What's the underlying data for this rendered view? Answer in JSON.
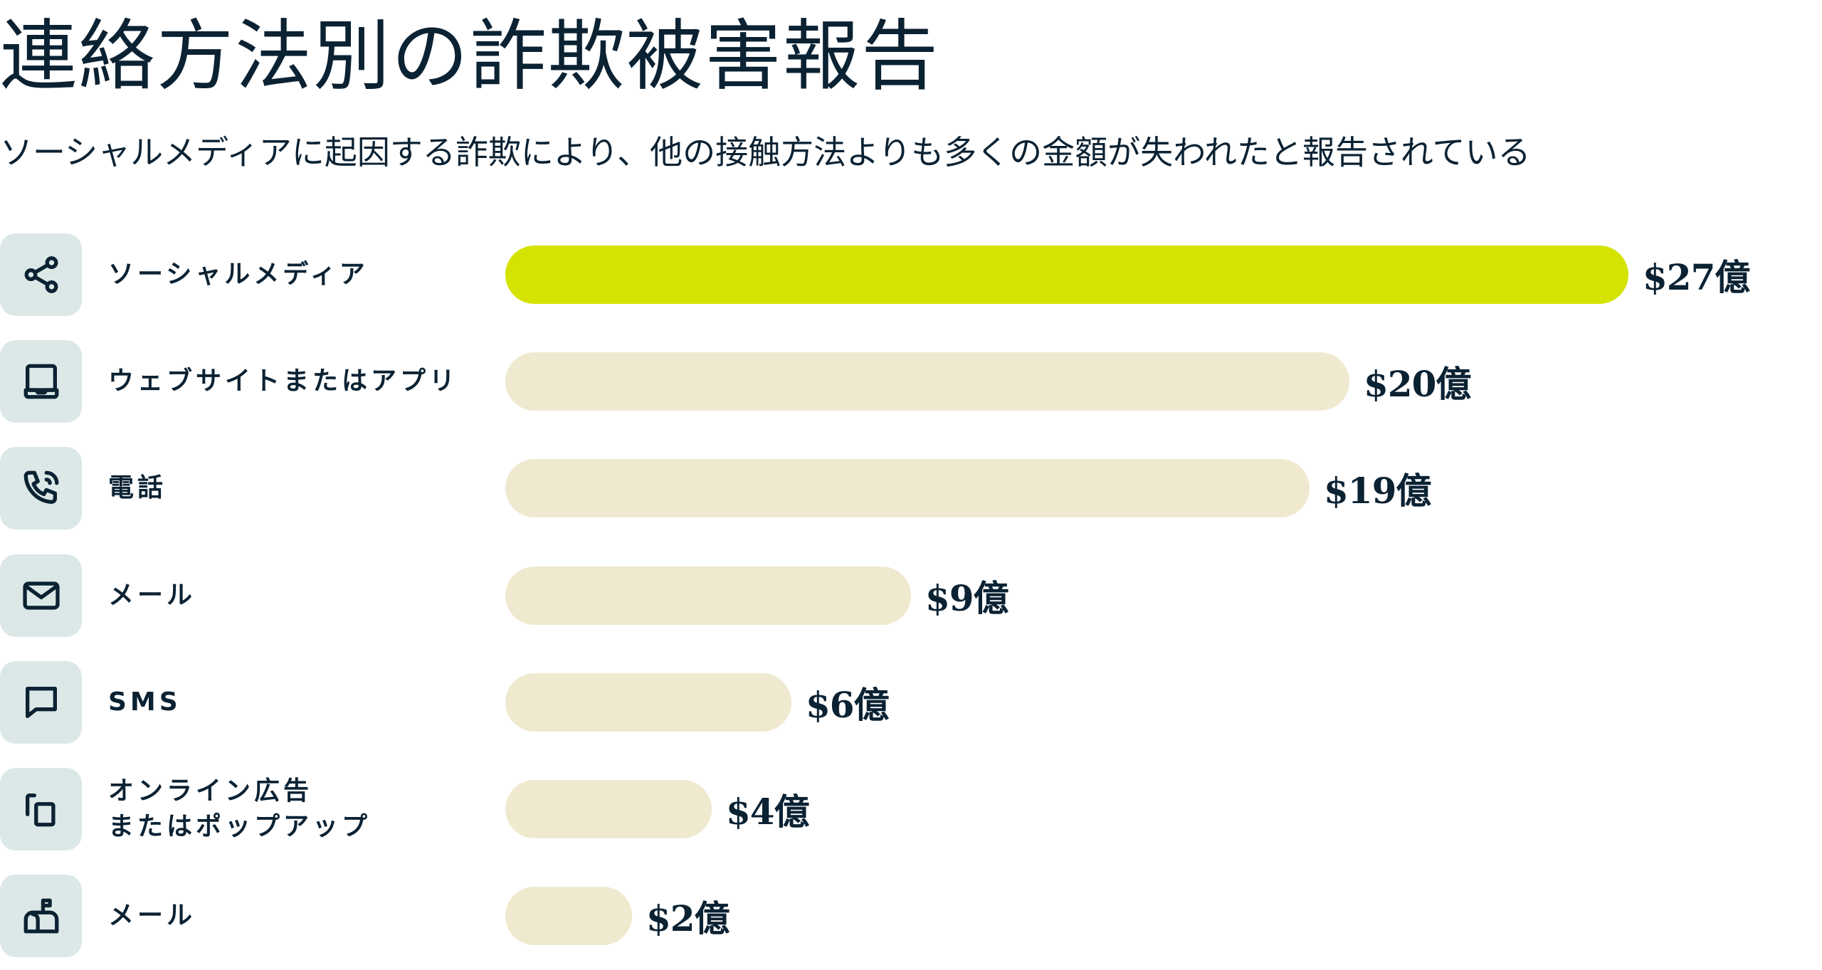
{
  "chart_data": {
    "type": "bar",
    "orientation": "horizontal",
    "title": "連絡方法別の詐欺被害報告",
    "subtitle": "ソーシャルメディアに起因する詐欺により、他の接触方法よりも多くの金額が失われたと報告されている",
    "unit": "億ドル",
    "categories": [
      "ソーシャルメディア",
      "ウェブサイトまたはアプリ",
      "電話",
      "メール",
      "SMS",
      "オンライン広告\nまたはポップアップ",
      "メール"
    ],
    "values": [
      27,
      20,
      19,
      9,
      6,
      4,
      2
    ],
    "value_labels": [
      "$27億",
      "$20億",
      "$19億",
      "$9億",
      "$6億",
      "$4億",
      "$2億"
    ],
    "icons": [
      "share-icon",
      "laptop-icon",
      "phone-call-icon",
      "envelope-icon",
      "chat-bubble-icon",
      "popup-windows-icon",
      "mailbox-icon"
    ],
    "highlight_index": 0,
    "colors": {
      "highlight": "#d4e300",
      "bar": "#efe9cf",
      "icon_bg": "#dce8e7",
      "text": "#0b2233"
    },
    "grid": false,
    "legend": "none"
  }
}
